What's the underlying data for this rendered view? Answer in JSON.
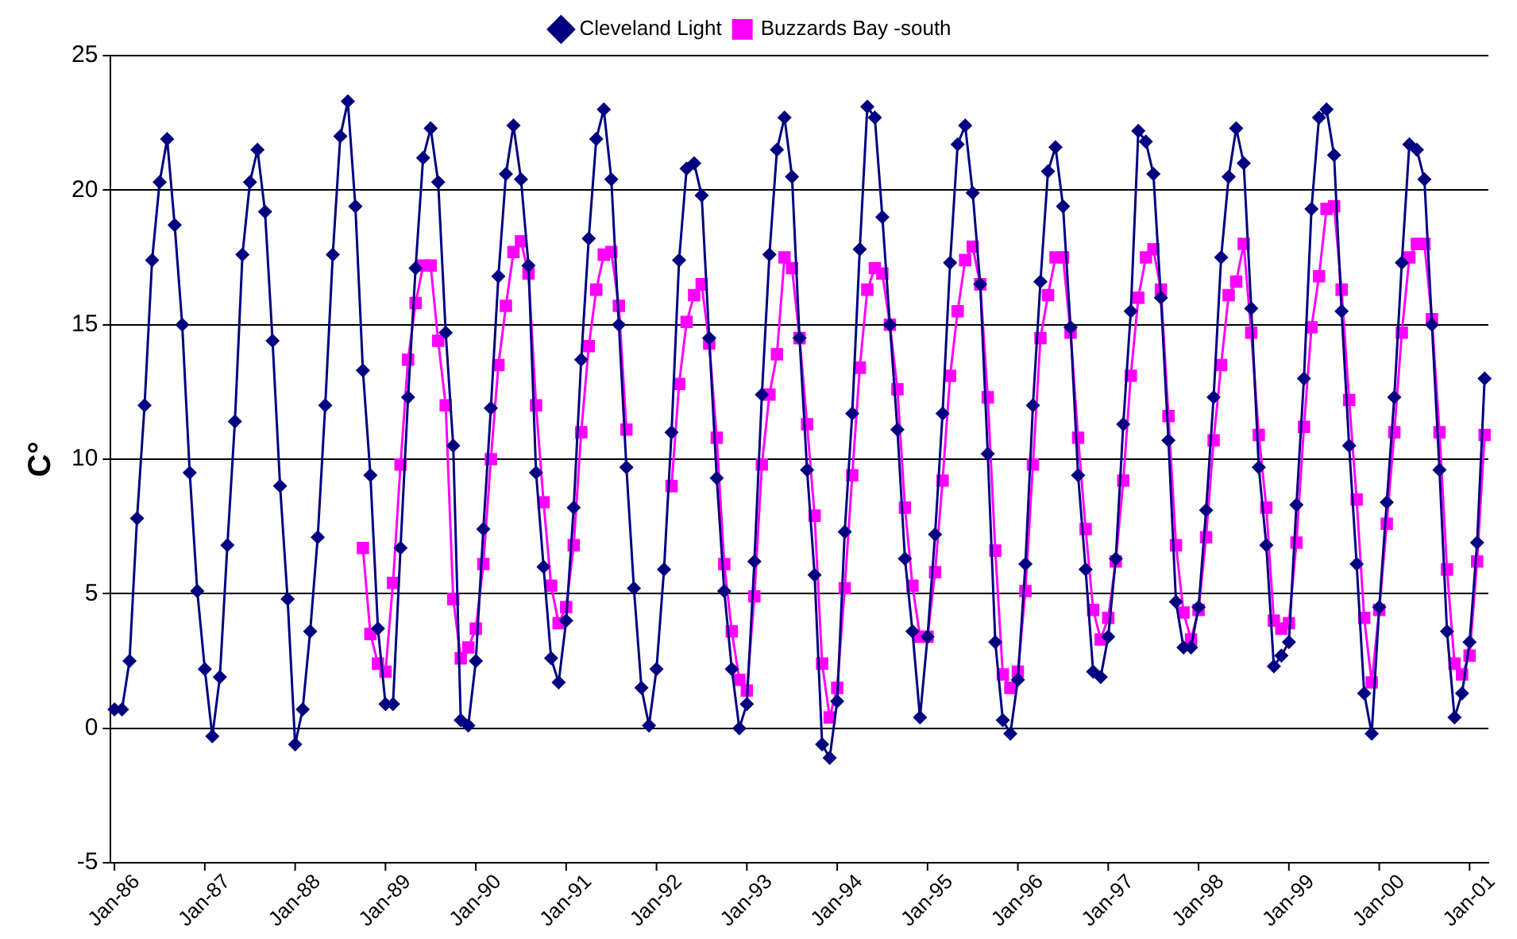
{
  "chart_data": {
    "type": "line",
    "ylabel": "C°",
    "legend": "top",
    "grid": "y",
    "ylim": [
      -5,
      25
    ],
    "yticks": [
      -5,
      0,
      5,
      10,
      15,
      20,
      25
    ],
    "categories": [
      "Jan-86",
      null,
      null,
      null,
      null,
      null,
      null,
      null,
      null,
      null,
      null,
      null,
      "Jan-87",
      null,
      null,
      null,
      null,
      null,
      null,
      null,
      null,
      null,
      null,
      null,
      "Jan-88",
      null,
      null,
      null,
      null,
      null,
      null,
      null,
      null,
      null,
      null,
      null,
      "Jan-89",
      null,
      null,
      null,
      null,
      null,
      null,
      null,
      null,
      null,
      null,
      null,
      "Jan-90",
      null,
      null,
      null,
      null,
      null,
      null,
      null,
      null,
      null,
      null,
      null,
      "Jan-91",
      null,
      null,
      null,
      null,
      null,
      null,
      null,
      null,
      null,
      null,
      null,
      "Jan-92",
      null,
      null,
      null,
      null,
      null,
      null,
      null,
      null,
      null,
      null,
      null,
      "Jan-93",
      null,
      null,
      null,
      null,
      null,
      null,
      null,
      null,
      null,
      null,
      null,
      "Jan-94",
      null,
      null,
      null,
      null,
      null,
      null,
      null,
      null,
      null,
      null,
      null,
      "Jan-95",
      null,
      null,
      null,
      null,
      null,
      null,
      null,
      null,
      null,
      null,
      null,
      "Jan-96",
      null,
      null,
      null,
      null,
      null,
      null,
      null,
      null,
      null,
      null,
      null,
      "Jan-97",
      null,
      null,
      null,
      null,
      null,
      null,
      null,
      null,
      null,
      null,
      null,
      "Jan-98",
      null,
      null,
      null,
      null,
      null,
      null,
      null,
      null,
      null,
      null,
      null,
      "Jan-99",
      null,
      null,
      null,
      null,
      null,
      null,
      null,
      null,
      null,
      null,
      null,
      "Jan-00",
      null,
      null,
      null,
      null,
      null,
      null,
      null,
      null,
      null,
      null,
      null,
      "Jan-01",
      null,
      null
    ],
    "series": [
      {
        "name": "Cleveland Light",
        "color": "#000080",
        "marker": "diamond",
        "values": [
          0.7,
          0.7,
          2.5,
          7.8,
          12,
          17.4,
          20.3,
          21.9,
          18.7,
          15,
          9.5,
          5.1,
          2.2,
          -0.3,
          1.9,
          6.8,
          11.4,
          17.6,
          20.3,
          21.5,
          19.2,
          14.4,
          9,
          4.8,
          -0.6,
          0.7,
          3.6,
          7.1,
          12,
          17.6,
          22,
          23.3,
          19.4,
          13.3,
          9.4,
          3.7,
          0.9,
          0.9,
          6.7,
          12.3,
          17.1,
          21.2,
          22.3,
          20.3,
          14.7,
          10.5,
          0.3,
          0.1,
          2.5,
          7.4,
          11.9,
          16.8,
          20.6,
          22.4,
          20.4,
          17.2,
          9.5,
          6,
          2.6,
          1.7,
          4,
          8.2,
          13.7,
          18.2,
          21.9,
          23,
          20.4,
          15,
          9.7,
          5.2,
          1.5,
          0.1,
          2.2,
          5.9,
          11,
          17.4,
          20.8,
          21,
          19.8,
          14.5,
          9.3,
          5.1,
          2.2,
          0,
          0.9,
          6.2,
          12.4,
          17.6,
          21.5,
          22.7,
          20.5,
          14.5,
          9.6,
          5.7,
          -0.6,
          -1.1,
          1,
          7.3,
          11.7,
          17.8,
          23.1,
          22.7,
          19,
          15,
          11.1,
          6.3,
          3.6,
          0.4,
          3.4,
          7.2,
          11.7,
          17.3,
          21.7,
          22.4,
          19.9,
          16.5,
          10.2,
          3.2,
          0.3,
          -0.2,
          1.8,
          6.1,
          12,
          16.6,
          20.7,
          21.6,
          19.4,
          14.9,
          9.4,
          5.9,
          2.1,
          1.9,
          3.4,
          6.3,
          11.3,
          15.5,
          22.2,
          21.8,
          20.6,
          16,
          10.7,
          4.7,
          3,
          3,
          4.5,
          8.1,
          12.3,
          17.5,
          20.5,
          22.3,
          21,
          15.6,
          9.7,
          6.8,
          2.3,
          2.7,
          3.2,
          8.3,
          13,
          19.3,
          22.7,
          23,
          21.3,
          15.5,
          10.5,
          6.1,
          1.3,
          -0.2,
          4.5,
          8.4,
          12.3,
          17.3,
          21.7,
          21.5,
          20.4,
          15,
          9.6,
          3.6,
          0.4,
          1.3,
          3.2,
          6.9,
          13
        ]
      },
      {
        "name": "Buzzards Bay -south",
        "color": "#ff00ff",
        "marker": "square",
        "values": [
          null,
          null,
          null,
          null,
          null,
          null,
          null,
          null,
          null,
          null,
          null,
          null,
          null,
          null,
          null,
          null,
          null,
          null,
          null,
          null,
          null,
          null,
          null,
          null,
          null,
          null,
          null,
          null,
          null,
          null,
          null,
          null,
          null,
          6.7,
          3.5,
          2.4,
          2.1,
          5.4,
          9.8,
          13.7,
          15.8,
          17.2,
          17.2,
          14.4,
          12,
          4.8,
          2.6,
          3,
          3.7,
          6.1,
          10,
          13.5,
          15.7,
          17.7,
          18.1,
          16.9,
          12,
          8.4,
          5.3,
          3.9,
          4.5,
          6.8,
          11,
          14.2,
          16.3,
          17.6,
          17.7,
          15.7,
          11.1,
          null,
          null,
          null,
          null,
          null,
          9,
          12.8,
          15.1,
          16.1,
          16.5,
          14.3,
          10.8,
          6.1,
          3.6,
          1.8,
          1.4,
          4.9,
          9.8,
          12.4,
          13.9,
          17.5,
          17.1,
          14.5,
          11.3,
          7.9,
          2.4,
          0.4,
          1.5,
          5.2,
          9.4,
          13.4,
          16.3,
          17.1,
          16.9,
          15,
          12.6,
          8.2,
          5.3,
          3.4,
          3.4,
          5.8,
          9.2,
          13.1,
          15.5,
          17.4,
          17.9,
          16.5,
          12.3,
          6.6,
          2,
          1.5,
          2.1,
          5.1,
          9.8,
          14.5,
          16.1,
          17.5,
          17.5,
          14.7,
          10.8,
          7.4,
          4.4,
          3.3,
          4.1,
          6.2,
          9.2,
          13.1,
          16,
          17.5,
          17.8,
          16.3,
          11.6,
          6.8,
          4.3,
          3.3,
          4.4,
          7.1,
          10.7,
          13.5,
          16.1,
          16.6,
          18,
          14.7,
          10.9,
          8.2,
          4,
          3.7,
          3.9,
          6.9,
          11.2,
          14.9,
          16.8,
          19.3,
          19.4,
          16.3,
          12.2,
          8.5,
          4.1,
          1.7,
          4.4,
          7.6,
          11,
          14.7,
          17.5,
          18,
          18,
          15.2,
          11,
          5.9,
          2.4,
          2,
          2.7,
          6.2,
          10.9
        ]
      }
    ]
  }
}
